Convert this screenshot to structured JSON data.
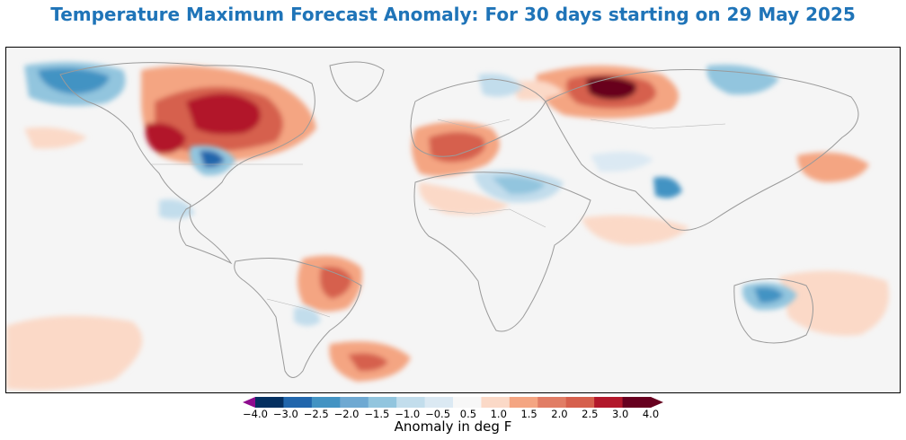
{
  "title": "Temperature Maximum Forecast Anomaly: For 30 days starting on 29 May 2025",
  "colorbar": {
    "label": "Anomaly in deg F",
    "tick_labels": [
      "−4.0",
      "−3.0",
      "−2.5",
      "−2.0",
      "−1.5",
      "−1.0",
      "−0.5",
      "0.5",
      "1.0",
      "1.5",
      "2.0",
      "2.5",
      "3.0",
      "4.0"
    ],
    "colors": [
      "#053061",
      "#2166ac",
      "#4393c3",
      "#6fa9d2",
      "#92c5de",
      "#c2ddec",
      "#dbe9f3",
      "#f7f7f7",
      "#fbd9c7",
      "#f4a582",
      "#e17d65",
      "#d6604d",
      "#b2182b",
      "#67001f"
    ],
    "under_color": "#8e0c8e",
    "over_color": "#67001f"
  },
  "map": {
    "projection": "equirectangular",
    "ocean_color": "#f5f5f5",
    "coast_color": "#9a9a9a"
  }
}
